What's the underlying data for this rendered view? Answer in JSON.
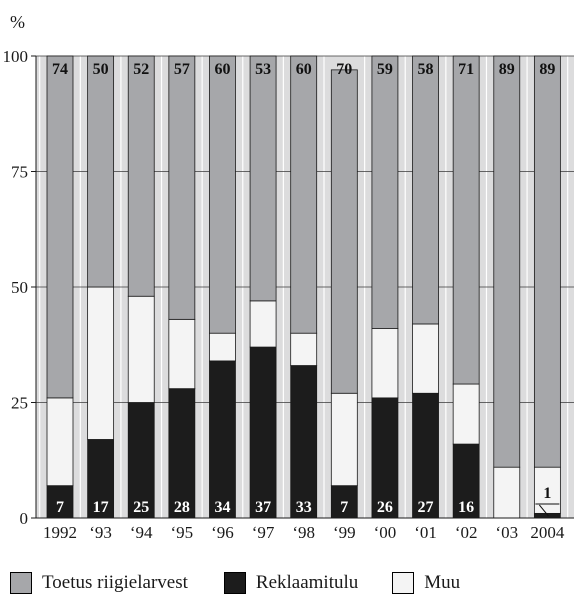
{
  "chart_data": {
    "type": "bar",
    "stacked": true,
    "ylabel": "%",
    "ylim": [
      0,
      100
    ],
    "yticks": [
      0,
      25,
      50,
      75,
      100
    ],
    "grid": "horizontal",
    "legend_position": "bottom",
    "categories": [
      "1992",
      "‘93",
      "‘94",
      "‘95",
      "‘96",
      "‘97",
      "‘98",
      "‘99",
      "‘00",
      "‘01",
      "‘02",
      "‘03",
      "2004"
    ],
    "series": [
      {
        "name": "Reklaamitulu",
        "color": "#1c1c1c",
        "values": [
          7,
          17,
          25,
          28,
          34,
          37,
          33,
          7,
          26,
          27,
          16,
          0,
          1
        ]
      },
      {
        "name": "Muu",
        "color": "#f4f4f4",
        "values": [
          19,
          33,
          23,
          15,
          6,
          10,
          7,
          20,
          15,
          15,
          13,
          11,
          10
        ]
      },
      {
        "name": "Toetus riigielarvest",
        "color": "#a6a7aa",
        "values": [
          74,
          50,
          52,
          57,
          60,
          53,
          60,
          70,
          59,
          58,
          71,
          89,
          89
        ]
      }
    ],
    "top_labels": [
      "74",
      "50",
      "52",
      "57",
      "60",
      "53",
      "60",
      "70",
      "59",
      "58",
      "71",
      "89",
      "89"
    ],
    "bottom_labels": [
      "7",
      "17",
      "25",
      "28",
      "34",
      "37",
      "33",
      "7",
      "26",
      "27",
      "16",
      "",
      "1"
    ]
  },
  "legend": {
    "items": [
      {
        "label": "Toetus riigielarvest",
        "color": "#a6a7aa"
      },
      {
        "label": "Reklaamitulu",
        "color": "#1c1c1c"
      },
      {
        "label": "Muu",
        "color": "#f4f4f4"
      }
    ]
  }
}
